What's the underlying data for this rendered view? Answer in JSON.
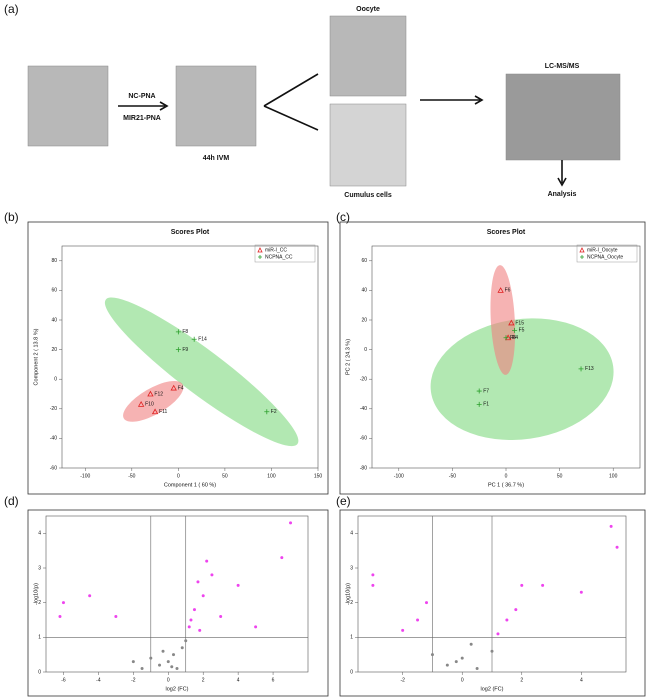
{
  "figure": {
    "panels": [
      "(a)",
      "(b)",
      "(c)",
      "(d)",
      "(e)"
    ]
  },
  "workflow": {
    "treatments": [
      "NC-PNA",
      "MIR21-PNA"
    ],
    "culture": "44h IVM",
    "oocyte": "Oocyte",
    "cumulus": "Cumulus cells",
    "instrument": "LC-MS/MS",
    "analysis": "Analysis"
  },
  "chart_data": [
    {
      "type": "scatter",
      "title": "Scores Plot",
      "x_label": "Component 1 ( 60 %)",
      "y_label": "Component 2 ( 13.8 %)",
      "xlim": [
        -125,
        150
      ],
      "ylim": [
        -60,
        90
      ],
      "xticks": [
        -100,
        -50,
        0,
        50,
        100,
        150
      ],
      "yticks": [
        -60,
        -40,
        -20,
        0,
        20,
        40,
        60,
        80
      ],
      "legend": "top-right",
      "series": [
        {
          "name": "miR-I_CC",
          "color": "#e02020",
          "marker": "triangle",
          "x": [
            -5,
            -30,
            -40,
            -25
          ],
          "values": [
            -6,
            -10,
            -17,
            -22
          ],
          "labels": [
            "F4",
            "F12",
            "F10",
            "F11"
          ]
        },
        {
          "name": "NCPNA_CC",
          "color": "#2ca02c",
          "marker": "plus",
          "x": [
            0,
            17,
            0,
            95
          ],
          "values": [
            32,
            27,
            20,
            -22
          ],
          "labels": [
            "F8",
            "F14",
            "F9",
            "F2"
          ]
        }
      ]
    },
    {
      "type": "scatter",
      "title": "Scores Plot",
      "x_label": "PC 1 ( 36.7 %)",
      "y_label": "PC 2 ( 24.3 %)",
      "xlim": [
        -125,
        125
      ],
      "ylim": [
        -80,
        70
      ],
      "xticks": [
        -100,
        -50,
        0,
        50,
        100
      ],
      "yticks": [
        -80,
        -60,
        -40,
        -20,
        0,
        20,
        40,
        60
      ],
      "legend": "top-right",
      "series": [
        {
          "name": "miR-I_Oocyte",
          "color": "#e02020",
          "marker": "triangle",
          "x": [
            -5,
            5,
            2
          ],
          "values": [
            40,
            18,
            8
          ],
          "labels": [
            "F6",
            "F15",
            "F4"
          ]
        },
        {
          "name": "NCPNA_Oocyte",
          "color": "#2ca02c",
          "marker": "plus",
          "x": [
            8,
            0,
            -25,
            -25,
            70
          ],
          "values": [
            13,
            8,
            -28,
            -37,
            -13
          ],
          "labels": [
            "F5",
            "F8",
            "F7",
            "F1",
            "F13"
          ]
        }
      ]
    },
    {
      "type": "volcano",
      "x_label": "log2 (FC)",
      "y_label": "-log10(p)",
      "xlim": [
        -7,
        8
      ],
      "ylim": [
        0,
        4.5
      ],
      "xticks": [
        -6,
        -4,
        -2,
        0,
        2,
        4,
        6
      ],
      "yticks": [
        0,
        1,
        2,
        3,
        4
      ],
      "vlines": [
        -1,
        1
      ],
      "hlines": [
        1
      ],
      "series": [
        {
          "color": "#888888",
          "x": [
            -0.5,
            0,
            0.3,
            0.5,
            -1,
            0.8,
            -0.3,
            1,
            0.2,
            -2,
            -1.5
          ],
          "values": [
            0.2,
            0.3,
            0.5,
            0.1,
            0.4,
            0.7,
            0.6,
            0.9,
            0.15,
            0.3,
            0.1
          ]
        },
        {
          "color": "#ee44ee",
          "x": [
            1.2,
            1.5,
            2,
            1.3,
            2.5,
            1.8,
            3,
            4,
            5,
            6.5,
            7,
            2.2,
            1.7,
            -6,
            -6.2,
            -4.5,
            -3
          ],
          "values": [
            1.3,
            1.8,
            2.2,
            1.5,
            2.8,
            1.2,
            1.6,
            2.5,
            1.3,
            3.3,
            4.3,
            3.2,
            2.6,
            2,
            1.6,
            2.2,
            1.6
          ]
        }
      ]
    },
    {
      "type": "volcano",
      "x_label": "log2 (FC)",
      "y_label": "-log10(p)",
      "xlim": [
        -3.5,
        5.5
      ],
      "ylim": [
        0,
        4.5
      ],
      "xticks": [
        -2,
        0,
        2,
        4
      ],
      "yticks": [
        0,
        1,
        2,
        3,
        4
      ],
      "vlines": [
        -1,
        1
      ],
      "hlines": [
        1
      ],
      "series": [
        {
          "color": "#888888",
          "x": [
            -0.5,
            0,
            0.5,
            -1,
            0.3,
            1,
            -0.2
          ],
          "values": [
            0.2,
            0.4,
            0.1,
            0.5,
            0.8,
            0.6,
            0.3
          ]
        },
        {
          "color": "#ee44ee",
          "x": [
            -1.5,
            -2,
            -1.2,
            -3,
            -3,
            1.5,
            2,
            2.7,
            1.2,
            4,
            5,
            5.2,
            1.8
          ],
          "values": [
            1.5,
            1.2,
            2,
            2.5,
            2.8,
            1.5,
            2.5,
            2.5,
            1.1,
            2.3,
            4.2,
            3.6,
            1.8
          ]
        }
      ]
    }
  ]
}
